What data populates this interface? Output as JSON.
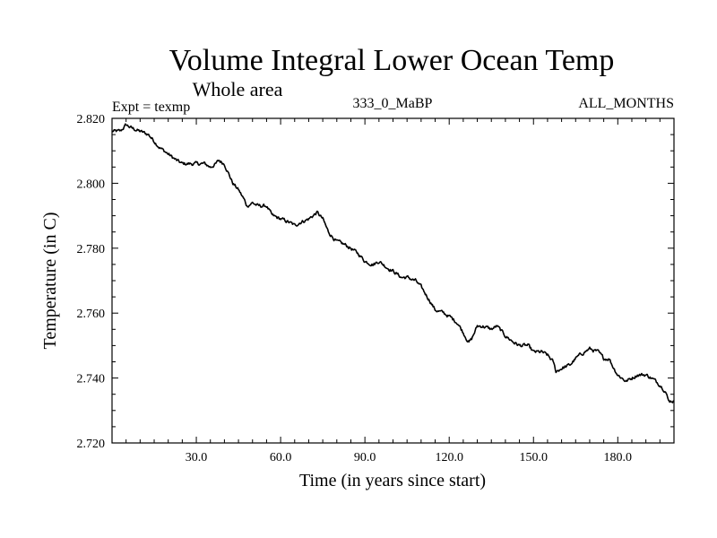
{
  "chart_data": {
    "type": "line",
    "title": "Volume Integral Lower Ocean Temp",
    "subtitle": "Whole area",
    "experiment_label": "Expt = texmp",
    "center_label": "333_0_MaBP",
    "right_label": "ALL_MONTHS",
    "xlabel": "Time (in years since start)",
    "ylabel": "Temperature (in C)",
    "xlim": [
      0,
      200
    ],
    "ylim": [
      2.72,
      2.82
    ],
    "xticks": [
      30,
      60,
      90,
      120,
      150,
      180
    ],
    "xtick_labels": [
      "30.0",
      "60.0",
      "90.0",
      "120.0",
      "150.0",
      "180.0"
    ],
    "yticks": [
      2.72,
      2.74,
      2.76,
      2.78,
      2.8,
      2.82
    ],
    "ytick_labels": [
      "2.720",
      "2.740",
      "2.760",
      "2.780",
      "2.800",
      "2.820"
    ],
    "grid": false,
    "series": [
      {
        "name": "Volume integral lower ocean temperature",
        "x": [
          0,
          3,
          5,
          7,
          10,
          13,
          15,
          17,
          20,
          23,
          25,
          28,
          30,
          33,
          35,
          37,
          38,
          40,
          42,
          43,
          45,
          47,
          48,
          50,
          52,
          55,
          57,
          60,
          63,
          65,
          67,
          70,
          73,
          75,
          77,
          80,
          83,
          85,
          88,
          90,
          93,
          95,
          98,
          100,
          103,
          105,
          108,
          110,
          113,
          115,
          118,
          120,
          123,
          125,
          127,
          128,
          130,
          132,
          135,
          137,
          140,
          143,
          145,
          148,
          150,
          153,
          155,
          157,
          158,
          160,
          163,
          165,
          168,
          170,
          173,
          175,
          177,
          178,
          180,
          183,
          185,
          187,
          190,
          192,
          195,
          197,
          198,
          200
        ],
        "y": [
          2.816,
          2.816,
          2.818,
          2.817,
          2.816,
          2.815,
          2.813,
          2.811,
          2.809,
          2.807,
          2.806,
          2.806,
          2.806,
          2.806,
          2.805,
          2.806,
          2.807,
          2.806,
          2.802,
          2.8,
          2.798,
          2.795,
          2.793,
          2.794,
          2.793,
          2.793,
          2.79,
          2.789,
          2.788,
          2.787,
          2.788,
          2.789,
          2.791,
          2.789,
          2.785,
          2.782,
          2.781,
          2.78,
          2.778,
          2.776,
          2.775,
          2.776,
          2.774,
          2.773,
          2.771,
          2.771,
          2.77,
          2.768,
          2.764,
          2.761,
          2.76,
          2.759,
          2.757,
          2.754,
          2.751,
          2.752,
          2.756,
          2.756,
          2.755,
          2.756,
          2.753,
          2.751,
          2.75,
          2.75,
          2.748,
          2.748,
          2.747,
          2.745,
          2.742,
          2.743,
          2.744,
          2.746,
          2.748,
          2.749,
          2.748,
          2.746,
          2.746,
          2.744,
          2.741,
          2.739,
          2.74,
          2.741,
          2.741,
          2.74,
          2.738,
          2.736,
          2.733,
          2.733
        ]
      }
    ]
  }
}
